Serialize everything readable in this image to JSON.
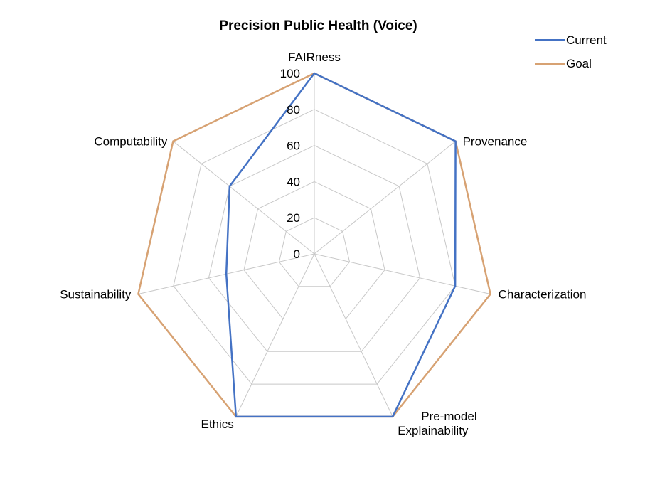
{
  "chart_data": {
    "type": "radar",
    "title": "Precision Public Health (Voice)",
    "categories": [
      "FAIRness",
      "Provenance",
      "Characterization",
      "Pre-model\nExplainability",
      "Ethics",
      "Sustainability",
      "Computability"
    ],
    "series": [
      {
        "name": "Current",
        "color": "#4472c4",
        "values": [
          100,
          100,
          80,
          100,
          100,
          50,
          60
        ]
      },
      {
        "name": "Goal",
        "color": "#d7a273",
        "values": [
          100,
          100,
          100,
          100,
          100,
          100,
          100
        ]
      }
    ],
    "rlim": [
      0,
      100
    ],
    "ticks": [
      0,
      20,
      40,
      60,
      80,
      100
    ],
    "grid": true,
    "legend_position": "top-right"
  }
}
